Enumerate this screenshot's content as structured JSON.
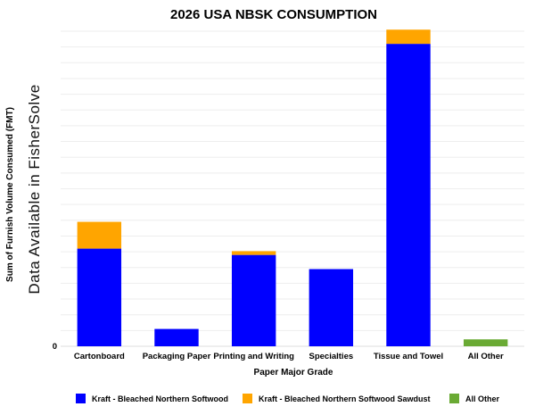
{
  "chart_data": {
    "type": "bar",
    "stacked": true,
    "title": "2026 USA NBSK CONSUMPTION",
    "xlabel": "Paper Major Grade",
    "ylabel": "Sum of Furnish Volume Consumed (FMT)",
    "watermark": "Data Available in FisherSolve",
    "y_tick_labels": [
      "0"
    ],
    "ylim": [
      0,
      100
    ],
    "grid": true,
    "legend_position": "bottom",
    "categories": [
      "Cartonboard",
      "Packaging Paper",
      "Printing and Writing",
      "Specialties",
      "Tissue and Towel",
      "All Other"
    ],
    "series": [
      {
        "name": "Kraft - Bleached Northern Softwood",
        "color": "#0000ff",
        "values": [
          31,
          5.5,
          29,
          24.5,
          96,
          0
        ]
      },
      {
        "name": "Kraft - Bleached Northern Softwood Sawdust",
        "color": "#ffa500",
        "values": [
          8.5,
          0,
          1.2,
          0,
          4.5,
          0
        ]
      },
      {
        "name": "All Other",
        "color": "#6aaa34",
        "values": [
          0,
          0,
          0,
          0,
          0,
          2.2
        ]
      }
    ]
  }
}
